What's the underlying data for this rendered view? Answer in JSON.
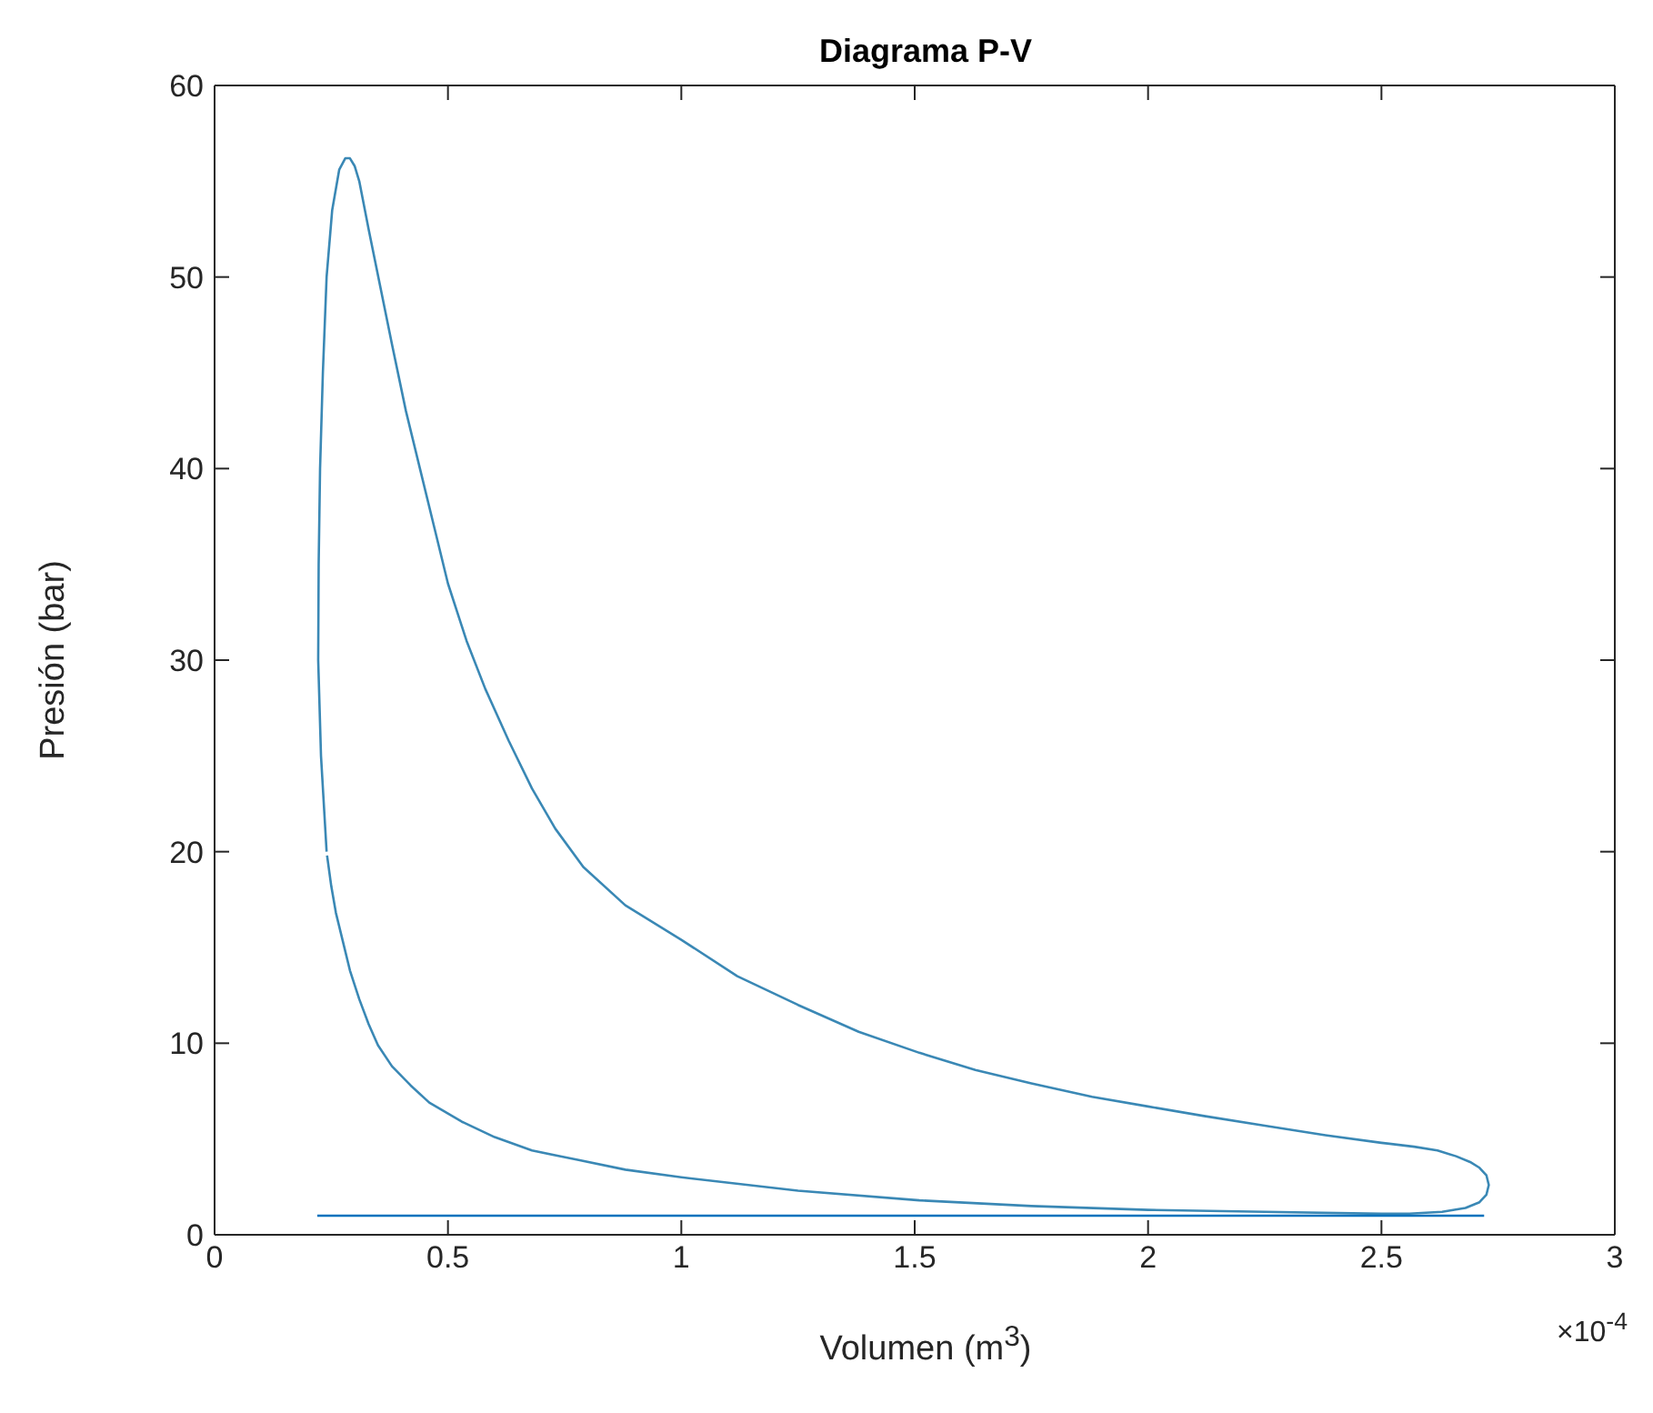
{
  "chart_data": {
    "type": "line",
    "title": "Diagrama P-V",
    "xlabel": "Volumen (m$^{3}$)",
    "ylabel": "Presión (bar)",
    "annotations": [
      "×10$^{-4}$"
    ],
    "xlim": [
      0,
      3
    ],
    "xticks": [
      0,
      0.5,
      1,
      1.5,
      2,
      2.5,
      3
    ],
    "ylim": [
      0,
      60
    ],
    "yticks": [
      0,
      10,
      20,
      30,
      40,
      50,
      60
    ],
    "series": [
      {
        "color": "#3a88b5",
        "x": [
          0.24,
          0.228,
          0.222,
          0.223,
          0.226,
          0.232,
          0.24,
          0.252,
          0.267,
          0.28,
          0.29,
          0.3,
          0.31,
          0.33,
          0.355,
          0.38,
          0.41,
          0.44,
          0.47,
          0.5,
          0.54,
          0.58,
          0.63,
          0.68,
          0.73,
          0.79,
          0.88,
          1.0,
          1.12,
          1.25,
          1.38,
          1.51,
          1.63,
          1.75,
          1.88,
          2.0,
          2.12,
          2.25,
          2.38,
          2.5,
          2.57,
          2.62,
          2.66,
          2.69,
          2.71,
          2.725,
          2.73,
          2.725,
          2.71,
          2.68,
          2.63,
          2.56,
          2.5,
          2.25,
          2.0,
          1.75,
          1.51,
          1.25,
          1.0,
          0.88,
          0.78,
          0.68,
          0.6,
          0.53,
          0.46,
          0.42,
          0.38,
          0.35,
          0.33,
          0.31,
          0.29,
          0.275,
          0.26,
          0.25,
          0.241
        ],
        "values": [
          20,
          25,
          30,
          35,
          40,
          45,
          50,
          53.5,
          55.6,
          56.2,
          56.2,
          55.8,
          55,
          52.5,
          49.5,
          46.5,
          43,
          40,
          37,
          34,
          31,
          28.5,
          25.8,
          23.3,
          21.2,
          19.2,
          17.2,
          15.4,
          13.5,
          12,
          10.6,
          9.5,
          8.6,
          7.9,
          7.2,
          6.7,
          6.2,
          5.7,
          5.2,
          4.8,
          4.6,
          4.4,
          4.1,
          3.8,
          3.5,
          3.1,
          2.6,
          2.1,
          1.7,
          1.4,
          1.2,
          1.1,
          1.1,
          1.2,
          1.3,
          1.5,
          1.8,
          2.3,
          3.0,
          3.4,
          3.9,
          4.4,
          5.1,
          5.9,
          6.9,
          7.8,
          8.8,
          9.9,
          11,
          12.3,
          13.8,
          15.3,
          16.8,
          18.2,
          19.8
        ]
      },
      {
        "color": "#0072bd",
        "x": [
          0.22,
          2.72
        ],
        "values": [
          1,
          1
        ]
      }
    ]
  }
}
